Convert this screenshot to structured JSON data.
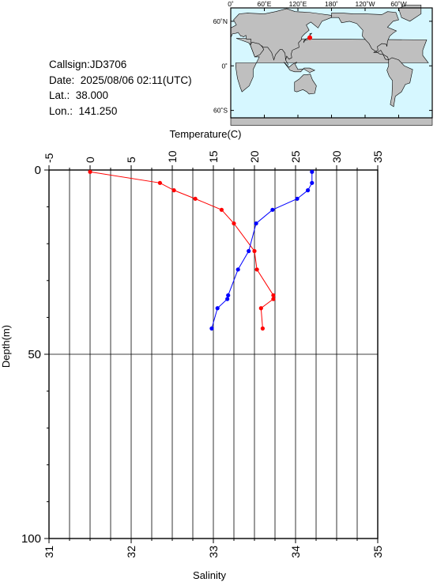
{
  "station": {
    "callsign": "Callsign:JD3706",
    "date": "Date:  2025/08/06 02:11(UTC)",
    "lat": "Lat.:  38.000",
    "lon": "Lon.:  141.250"
  },
  "map": {
    "lon_labels": [
      "0˚",
      "60˚E",
      "120˚E",
      "180˚",
      "120˚W",
      "60˚W"
    ],
    "lat_labels": [
      "60˚N",
      "0˚",
      "60˚S"
    ],
    "marker": {
      "lat": 38.0,
      "lon": 141.25,
      "color": "#ff0000"
    },
    "ocean_color": "#d6f7ff",
    "land_color": "#bfbfbf"
  },
  "chart_data": {
    "type": "line",
    "top_axis": {
      "label": "Temperature(C)",
      "range": [
        -5,
        35
      ],
      "ticks": [
        "-5",
        "0",
        "5",
        "10",
        "15",
        "20",
        "25",
        "30",
        "35"
      ]
    },
    "bottom_axis": {
      "label": "Salinity",
      "range": [
        31,
        35
      ],
      "ticks": [
        "31",
        "32",
        "33",
        "34",
        "35"
      ]
    },
    "y_axis": {
      "label": "Depth(m)",
      "range": [
        0,
        100
      ],
      "inverted": true,
      "ticks": [
        "0",
        "50",
        "100"
      ]
    },
    "grid": true,
    "series": [
      {
        "quantity": "temperature",
        "axis": "top",
        "color": "#ff0000",
        "points": [
          [
            0.0,
            0.5
          ],
          [
            8.5,
            3.5
          ],
          [
            10.2,
            5.5
          ],
          [
            12.8,
            7.8
          ],
          [
            16.0,
            10.8
          ],
          [
            17.5,
            14.5
          ],
          [
            20.0,
            22
          ],
          [
            20.3,
            27
          ],
          [
            22.3,
            34
          ],
          [
            22.3,
            35
          ],
          [
            20.8,
            37.5
          ],
          [
            21.0,
            43
          ]
        ]
      },
      {
        "quantity": "salinity",
        "axis": "bottom",
        "color": "#0000ff",
        "points": [
          [
            34.2,
            0.5
          ],
          [
            34.2,
            3.5
          ],
          [
            34.15,
            5.5
          ],
          [
            34.02,
            7.8
          ],
          [
            33.72,
            10.8
          ],
          [
            33.52,
            14.5
          ],
          [
            33.43,
            22
          ],
          [
            33.3,
            27
          ],
          [
            33.18,
            34
          ],
          [
            33.17,
            35
          ],
          [
            33.05,
            37.5
          ],
          [
            32.98,
            43
          ]
        ]
      }
    ]
  }
}
